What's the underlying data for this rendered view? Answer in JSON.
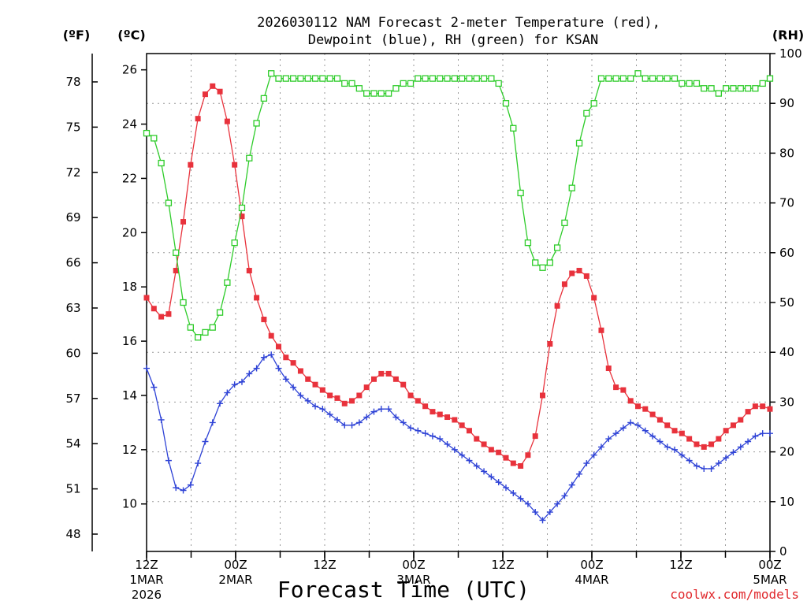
{
  "chart_data": {
    "type": "line",
    "title_line1": "2026030112 NAM Forecast 2-meter Temperature (red),",
    "title_line2": "Dewpoint (blue), RH (green) for KSAN",
    "xlabel": "Forecast Time (UTC)",
    "credit": "coolwx.com/models",
    "axis_titles": {
      "f": "(ºF)",
      "c": "(ºC)",
      "rh": "(RH)"
    },
    "x_range_hours": [
      0,
      84
    ],
    "celsius_range": [
      8.25,
      26.6
    ],
    "rh_range": [
      0,
      100
    ],
    "grid": true,
    "c_ticks": [
      "10",
      "12",
      "14",
      "16",
      "18",
      "20",
      "22",
      "24",
      "26"
    ],
    "f_ticks": [
      "48",
      "51",
      "54",
      "57",
      "60",
      "63",
      "66",
      "69",
      "72",
      "75",
      "78"
    ],
    "rh_ticks": [
      "0",
      "10",
      "20",
      "30",
      "40",
      "50",
      "60",
      "70",
      "80",
      "90",
      "100"
    ],
    "x_ticks": [
      {
        "hour": 0,
        "label1": "12Z",
        "label2": "1MAR",
        "label3": "2026"
      },
      {
        "hour": 12,
        "label1": "00Z",
        "label2": "2MAR",
        "label3": ""
      },
      {
        "hour": 24,
        "label1": "12Z",
        "label2": "",
        "label3": ""
      },
      {
        "hour": 36,
        "label1": "00Z",
        "label2": "3MAR",
        "label3": ""
      },
      {
        "hour": 48,
        "label1": "12Z",
        "label2": "",
        "label3": ""
      },
      {
        "hour": 60,
        "label1": "00Z",
        "label2": "4MAR",
        "label3": ""
      },
      {
        "hour": 72,
        "label1": "12Z",
        "label2": "",
        "label3": ""
      },
      {
        "hour": 84,
        "label1": "00Z",
        "label2": "5MAR",
        "label3": ""
      }
    ],
    "series": [
      {
        "name": "Temperature (°C)",
        "axis": "c",
        "color": "#e8323c",
        "marker": "filled-square",
        "values": [
          17.6,
          17.2,
          16.9,
          17.0,
          18.6,
          20.4,
          22.5,
          24.2,
          25.1,
          25.4,
          25.2,
          24.1,
          22.5,
          20.6,
          18.6,
          17.6,
          16.8,
          16.2,
          15.8,
          15.4,
          15.2,
          14.9,
          14.6,
          14.4,
          14.2,
          14.0,
          13.9,
          13.7,
          13.8,
          14.0,
          14.3,
          14.6,
          14.8,
          14.8,
          14.6,
          14.4,
          14.0,
          13.8,
          13.6,
          13.4,
          13.3,
          13.2,
          13.1,
          12.9,
          12.7,
          12.4,
          12.2,
          12.0,
          11.9,
          11.7,
          11.5,
          11.4,
          11.8,
          12.5,
          14.0,
          15.9,
          17.3,
          18.1,
          18.5,
          18.6,
          18.4,
          17.6,
          16.4,
          15.0,
          14.3,
          14.2,
          13.8,
          13.6,
          13.5,
          13.3,
          13.1,
          12.9,
          12.7,
          12.6,
          12.4,
          12.2,
          12.1,
          12.2,
          12.4,
          12.7,
          12.9,
          13.1,
          13.4,
          13.6,
          13.6,
          13.5
        ]
      },
      {
        "name": "Dewpoint (°C)",
        "axis": "c",
        "color": "#2f43d6",
        "marker": "plus",
        "values": [
          15.0,
          14.3,
          13.1,
          11.6,
          10.6,
          10.5,
          10.7,
          11.5,
          12.3,
          13.0,
          13.7,
          14.1,
          14.4,
          14.5,
          14.8,
          15.0,
          15.4,
          15.5,
          15.0,
          14.6,
          14.3,
          14.0,
          13.8,
          13.6,
          13.5,
          13.3,
          13.1,
          12.9,
          12.9,
          13.0,
          13.2,
          13.4,
          13.5,
          13.5,
          13.2,
          13.0,
          12.8,
          12.7,
          12.6,
          12.5,
          12.4,
          12.2,
          12.0,
          11.8,
          11.6,
          11.4,
          11.2,
          11.0,
          10.8,
          10.6,
          10.4,
          10.2,
          10.0,
          9.7,
          9.4,
          9.7,
          10.0,
          10.3,
          10.7,
          11.1,
          11.5,
          11.8,
          12.1,
          12.4,
          12.6,
          12.8,
          13.0,
          12.9,
          12.7,
          12.5,
          12.3,
          12.1,
          12.0,
          11.8,
          11.6,
          11.4,
          11.3,
          11.3,
          11.5,
          11.7,
          11.9,
          12.1,
          12.3,
          12.5,
          12.6,
          12.6
        ]
      },
      {
        "name": "RH (%)",
        "axis": "rh",
        "color": "#2ecc2a",
        "marker": "open-square",
        "values": [
          84,
          83,
          78,
          70,
          60,
          50,
          45,
          43,
          44,
          45,
          48,
          54,
          62,
          69,
          79,
          86,
          91,
          96,
          95,
          95,
          95,
          95,
          95,
          95,
          95,
          95,
          95,
          94,
          94,
          93,
          92,
          92,
          92,
          92,
          93,
          94,
          94,
          95,
          95,
          95,
          95,
          95,
          95,
          95,
          95,
          95,
          95,
          95,
          94,
          90,
          85,
          72,
          62,
          58,
          57,
          58,
          61,
          66,
          73,
          82,
          88,
          90,
          95,
          95,
          95,
          95,
          95,
          96,
          95,
          95,
          95,
          95,
          95,
          94,
          94,
          94,
          93,
          93,
          92,
          93,
          93,
          93,
          93,
          93,
          94,
          95
        ]
      }
    ]
  }
}
